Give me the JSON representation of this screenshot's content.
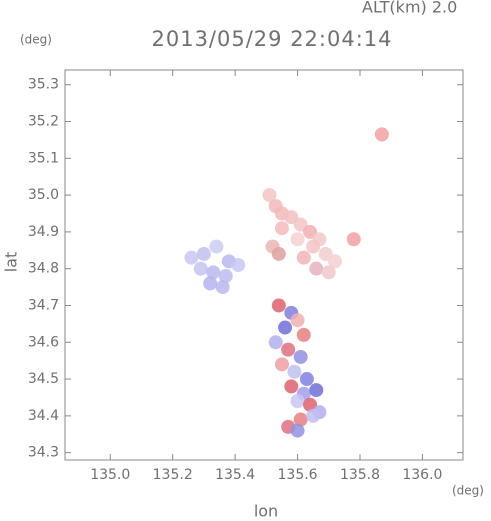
{
  "chart_data": {
    "type": "scatter",
    "title": "2013/05/29 22:04:14",
    "annotation": "ALT(km) 2.0",
    "x_unit": "(deg)",
    "y_unit": "(deg)",
    "xlabel": "lon",
    "ylabel": "lat",
    "xlim": [
      134.855,
      136.13
    ],
    "ylim": [
      34.28,
      35.34
    ],
    "xticks": [
      {
        "value": 135,
        "label": "135.0"
      },
      135.2,
      135.4,
      135.6,
      135.8,
      {
        "value": 136,
        "label": "136.0"
      }
    ],
    "yticks": [
      34.3,
      34.4,
      34.5,
      34.6,
      34.7,
      34.8,
      34.9,
      {
        "value": 35,
        "label": "35.0"
      },
      35.1,
      35.2,
      35.3
    ],
    "x": [
      135.51,
      135.53,
      135.55,
      135.58,
      135.61,
      135.64,
      135.67,
      135.55,
      135.6,
      135.65,
      135.69,
      135.72,
      135.62,
      135.66,
      135.7,
      135.52,
      135.54,
      135.87,
      135.78,
      135.26,
      135.3,
      135.34,
      135.38,
      135.29,
      135.33,
      135.37,
      135.41,
      135.32,
      135.36,
      135.54,
      135.58,
      135.6,
      135.56,
      135.62,
      135.53,
      135.57,
      135.61,
      135.55,
      135.59,
      135.63,
      135.58,
      135.62,
      135.66,
      135.6,
      135.64,
      135.67,
      135.61,
      135.65,
      135.57,
      135.6
    ],
    "y": [
      35.0,
      34.97,
      34.95,
      34.94,
      34.92,
      34.9,
      34.88,
      34.91,
      34.88,
      34.86,
      34.84,
      34.82,
      34.83,
      34.8,
      34.79,
      34.86,
      34.84,
      35.165,
      34.88,
      34.83,
      34.84,
      34.86,
      34.82,
      34.8,
      34.79,
      34.78,
      34.81,
      34.76,
      34.75,
      34.7,
      34.68,
      34.66,
      34.64,
      34.62,
      34.6,
      34.58,
      34.56,
      34.54,
      34.52,
      34.5,
      34.48,
      34.46,
      34.47,
      34.44,
      34.43,
      34.41,
      34.39,
      34.4,
      34.37,
      34.36
    ],
    "colors": [
      "#f4c4c4",
      "#f4b8b8",
      "#f4b8b8",
      "#f4c0c0",
      "#f4c4c4",
      "#f2b0b0",
      "#f4c8c8",
      "#f4bcbc",
      "#f6d0d0",
      "#f4c4c4",
      "#f4cccc",
      "#f4d0d0",
      "#f4b4b4",
      "#e8b0c0",
      "#f0c8c8",
      "#f0b4b4",
      "#e0a0a0",
      "#f4a0a0",
      "#f4a0a0",
      "#c8c8f4",
      "#c0c0f0",
      "#ccccf4",
      "#b8b8ee",
      "#c4c4f2",
      "#b8b8ee",
      "#bcbcf0",
      "#c8c8f4",
      "#b4b4ee",
      "#b8b8f0",
      "#e06070",
      "#8080e0",
      "#f0b0b0",
      "#7070d8",
      "#e88080",
      "#b0b0f0",
      "#e07080",
      "#9090e4",
      "#f0a0a0",
      "#c0c0f0",
      "#8080e0",
      "#e06070",
      "#a0a0ec",
      "#7070d8",
      "#c8c8f4",
      "#e06070",
      "#b0b0ee",
      "#e88080",
      "#c0c0f2",
      "#e07080",
      "#9090e4"
    ]
  }
}
